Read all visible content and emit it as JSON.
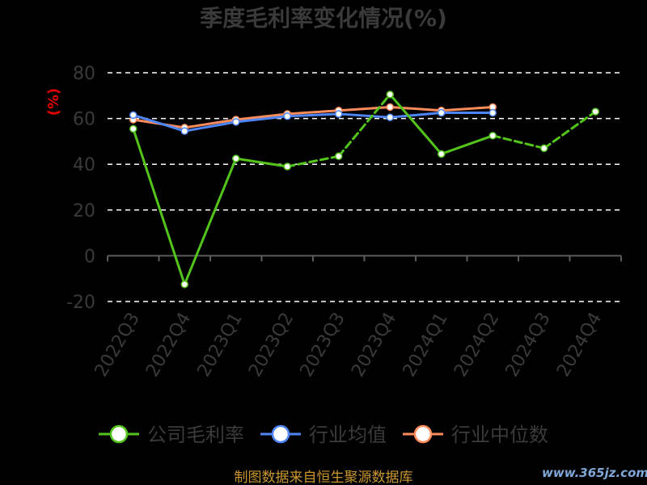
{
  "chart_data": {
    "type": "line",
    "title": "季度毛利率变化情况(%)",
    "ylabel": "(%)",
    "xlabel": "",
    "categories": [
      "2022Q3",
      "2022Q4",
      "2023Q1",
      "2023Q2",
      "2023Q3",
      "2023Q4",
      "2024Q1",
      "2024Q2",
      "2024Q3",
      "2024Q4"
    ],
    "ylim": [
      -20,
      80
    ],
    "yticks": [
      "80",
      "60",
      "40",
      "20",
      "0",
      "-20"
    ],
    "grid": true,
    "legend_position": "bottom",
    "series": [
      {
        "name": "公司毛利率",
        "color": "#52c41a",
        "dashed_segments": [
          3,
          4,
          7,
          8
        ],
        "values": [
          55.5,
          -12.5,
          42.5,
          39.0,
          43.5,
          70.5,
          44.5,
          52.5,
          47.0,
          63.0
        ]
      },
      {
        "name": "行业均值",
        "color": "#4f86f7",
        "values": [
          61.5,
          54.5,
          58.5,
          61.0,
          62.0,
          60.5,
          62.5,
          62.5,
          null,
          null
        ]
      },
      {
        "name": "行业中位数",
        "color": "#ff8c5a",
        "values": [
          59.5,
          56.0,
          59.5,
          62.0,
          63.5,
          65.0,
          63.5,
          65.0,
          null,
          null
        ]
      }
    ]
  },
  "footer": "制图数据来自恒生聚源数据库",
  "watermark": "www.365jz.com"
}
